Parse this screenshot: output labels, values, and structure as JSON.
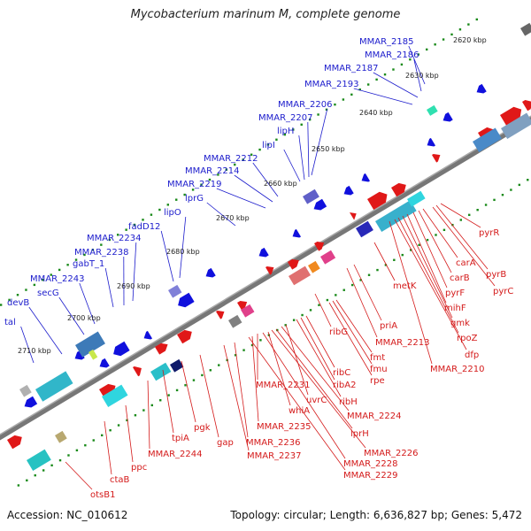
{
  "title": "Mycobacterium marinum M, complete genome",
  "footer": {
    "accession": "Accession: NC_010612",
    "summary": "Topology: circular; Length: 6,636,827 bp; Genes: 5,472"
  },
  "colors": {
    "forward_gene": "#e01818",
    "reverse_gene": "#1010dd",
    "label_forward": "#d41a1a",
    "label_reverse": "#1c1ccc",
    "backbone": "#777777",
    "tick": "#1a8a1a"
  },
  "kbp_marks": [
    "2620 kbp",
    "2630 kbp",
    "2640 kbp",
    "2650 kbp",
    "2660 kbp",
    "2670 kbp",
    "2680 kbp",
    "2690 kbp",
    "2700 kbp",
    "2710 kbp"
  ],
  "top_labels": [
    "MMAR_2185",
    "MMAR_2186",
    "MMAR_2187",
    "MMAR_2193",
    "MMAR_2206",
    "MMAR_2207",
    "lipH",
    "lipI",
    "MMAR_2212",
    "MMAR_2214",
    "MMAR_2219",
    "lprG",
    "lipO",
    "fadD12",
    "MMAR_2234",
    "MMAR_2238",
    "gabT_1",
    "MMAR_2243",
    "secG",
    "devB",
    "tal"
  ],
  "bottom_labels": [
    "pyrR",
    "pyrB",
    "pyrC",
    "carA",
    "carB",
    "pyrF",
    "mihF",
    "gmk",
    "rpoZ",
    "dfp",
    "MMAR_2210",
    "metK",
    "priA",
    "MMAR_2213",
    "ribG",
    "fmt",
    "fmu",
    "rpe",
    "ribC",
    "ribA2",
    "ribH",
    "uvrC",
    "MMAR_2224",
    "lprH",
    "MMAR_2231",
    "whiA",
    "MMAR_2235",
    "MMAR_2226",
    "MMAR_2228",
    "MMAR_2229",
    "MMAR_2236",
    "MMAR_2237",
    "gap",
    "pgk",
    "tpiA",
    "MMAR_2244",
    "ppc",
    "ctaB",
    "otsB1"
  ]
}
